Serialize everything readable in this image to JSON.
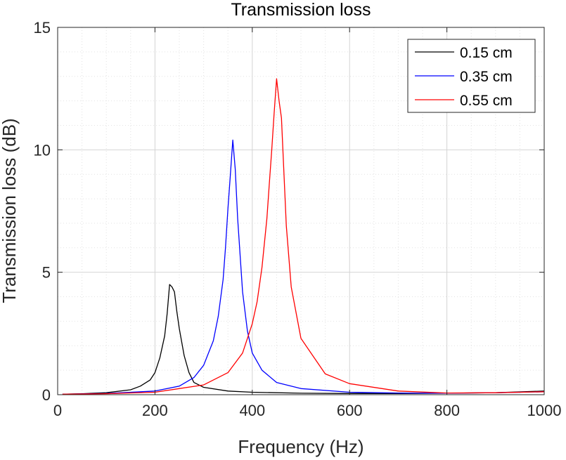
{
  "chart_data": {
    "type": "line",
    "title": "Transmission loss",
    "xlabel": "Frequency (Hz)",
    "ylabel": "Transmission loss (dB)",
    "xlim": [
      0,
      1000
    ],
    "ylim": [
      0,
      15
    ],
    "xticks": [
      0,
      200,
      400,
      600,
      800,
      1000
    ],
    "yticks": [
      0,
      5,
      10,
      15
    ],
    "xtick_labels": [
      "0",
      "200",
      "400",
      "600",
      "800",
      "1000"
    ],
    "ytick_labels": [
      "0",
      "5",
      "10",
      "15"
    ],
    "grid": true,
    "minor_grid": true,
    "legend": "top-right",
    "series": [
      {
        "name": "0.15 cm",
        "color": "#000000",
        "x": [
          10,
          50,
          100,
          150,
          170,
          190,
          200,
          210,
          220,
          225,
          230,
          235,
          240,
          245,
          250,
          260,
          270,
          280,
          300,
          350,
          400,
          500,
          600,
          700,
          800,
          900,
          1000
        ],
        "y": [
          0.02,
          0.04,
          0.08,
          0.2,
          0.35,
          0.6,
          0.9,
          1.5,
          2.4,
          3.3,
          4.5,
          4.4,
          4.2,
          3.4,
          2.7,
          1.6,
          0.9,
          0.5,
          0.3,
          0.15,
          0.1,
          0.06,
          0.05,
          0.05,
          0.06,
          0.08,
          0.15
        ]
      },
      {
        "name": "0.35 cm",
        "color": "#0000ff",
        "x": [
          10,
          100,
          200,
          250,
          280,
          300,
          320,
          330,
          340,
          345,
          350,
          355,
          360,
          365,
          370,
          380,
          390,
          400,
          420,
          450,
          500,
          600,
          700,
          800,
          900,
          1000
        ],
        "y": [
          0.02,
          0.05,
          0.15,
          0.35,
          0.7,
          1.2,
          2.2,
          3.2,
          4.7,
          6.0,
          7.6,
          9.0,
          10.4,
          9.2,
          7.2,
          4.2,
          2.6,
          1.7,
          1.0,
          0.5,
          0.25,
          0.1,
          0.07,
          0.06,
          0.08,
          0.12
        ]
      },
      {
        "name": "0.55 cm",
        "color": "#ff0000",
        "x": [
          10,
          100,
          200,
          300,
          350,
          380,
          400,
          410,
          420,
          430,
          435,
          440,
          445,
          450,
          455,
          460,
          470,
          480,
          500,
          550,
          600,
          700,
          800,
          900,
          1000
        ],
        "y": [
          0.02,
          0.04,
          0.1,
          0.4,
          0.9,
          1.7,
          2.9,
          3.8,
          5.2,
          7.2,
          8.6,
          10.0,
          11.5,
          12.9,
          12.0,
          11.3,
          6.9,
          4.4,
          2.3,
          0.85,
          0.45,
          0.15,
          0.07,
          0.08,
          0.12
        ]
      }
    ]
  }
}
